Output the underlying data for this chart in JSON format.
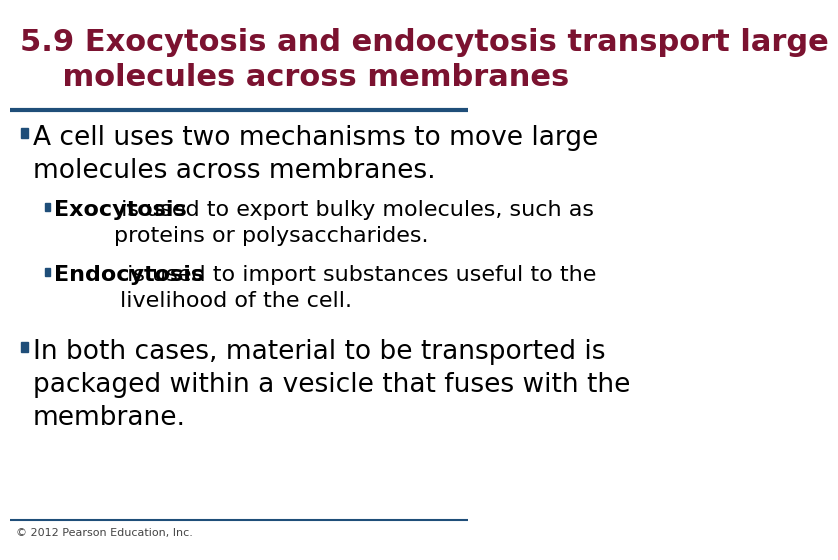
{
  "title_line1": "5.9 Exocytosis and endocytosis transport large",
  "title_line2": "    molecules across membranes",
  "title_color": "#7B1230",
  "title_fontsize": 22,
  "rule_color_top": "#1F4E79",
  "rule_color_bottom": "#1F4E79",
  "background_color": "#FFFFFF",
  "bullet_color": "#1F4E79",
  "text_color": "#000000",
  "bold_color": "#000000",
  "bullet1": "A cell uses two mechanisms to move large\nmolecules across membranes.",
  "sub_bullet1_bold": "Exocytosis",
  "sub_bullet1_rest": " is used to export bulky molecules, such as\nproteins or polysaccharides.",
  "sub_bullet2_bold": "Endocytosis",
  "sub_bullet2_rest": " is used to import substances useful to the\nlivelihood of the cell.",
  "bullet2": "In both cases, material to be transported is\npackaged within a vesicle that fuses with the\nmembrane.",
  "footer": "© 2012 Pearson Education, Inc.",
  "footer_fontsize": 8,
  "main_bullet_fontsize": 19,
  "sub_bullet_fontsize": 16
}
